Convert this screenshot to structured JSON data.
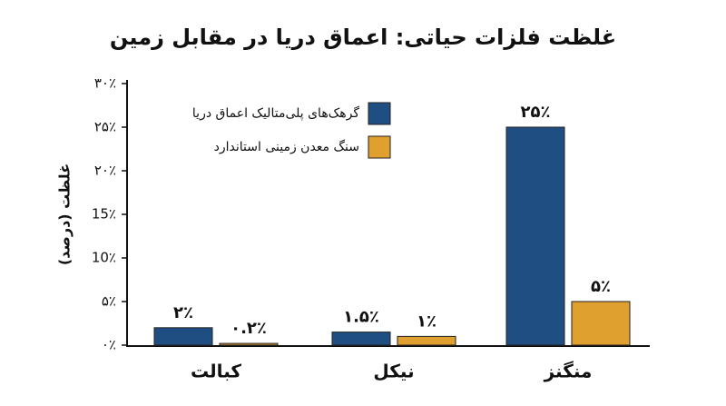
{
  "chart_data": {
    "type": "bar",
    "title": "غلظت فلزات حیاتی: اعماق دریا در مقابل زمین",
    "y_label": "غلظت (درصد)",
    "categories": [
      "کبالت",
      "نیکل",
      "منگنز"
    ],
    "series": [
      {
        "name": "گرهک‌های پلی‌متالیک اعماق دریا",
        "color": "#1f4e82",
        "values": [
          2,
          1.5,
          25
        ],
        "value_labels": [
          "۲٪",
          "۱.۵٪",
          "۲۵٪"
        ]
      },
      {
        "name": "سنگ معدن زمینی استاندارد",
        "color": "#e0a030",
        "values": [
          0.2,
          1,
          5
        ],
        "value_labels": [
          "۰.۲٪",
          "۱٪",
          "۵٪"
        ]
      }
    ],
    "ylim": [
      0,
      30
    ],
    "yticks": [
      {
        "value": 0,
        "label": "۰٪"
      },
      {
        "value": 5,
        "label": "۵٪"
      },
      {
        "value": 10,
        "label": "10٪"
      },
      {
        "value": 15,
        "label": "15٪"
      },
      {
        "value": 20,
        "label": "۲۰٪"
      },
      {
        "value": 25,
        "label": "۲۵٪"
      },
      {
        "value": 30,
        "label": "۳۰٪"
      }
    ],
    "grid": false,
    "legend": "upper left"
  }
}
